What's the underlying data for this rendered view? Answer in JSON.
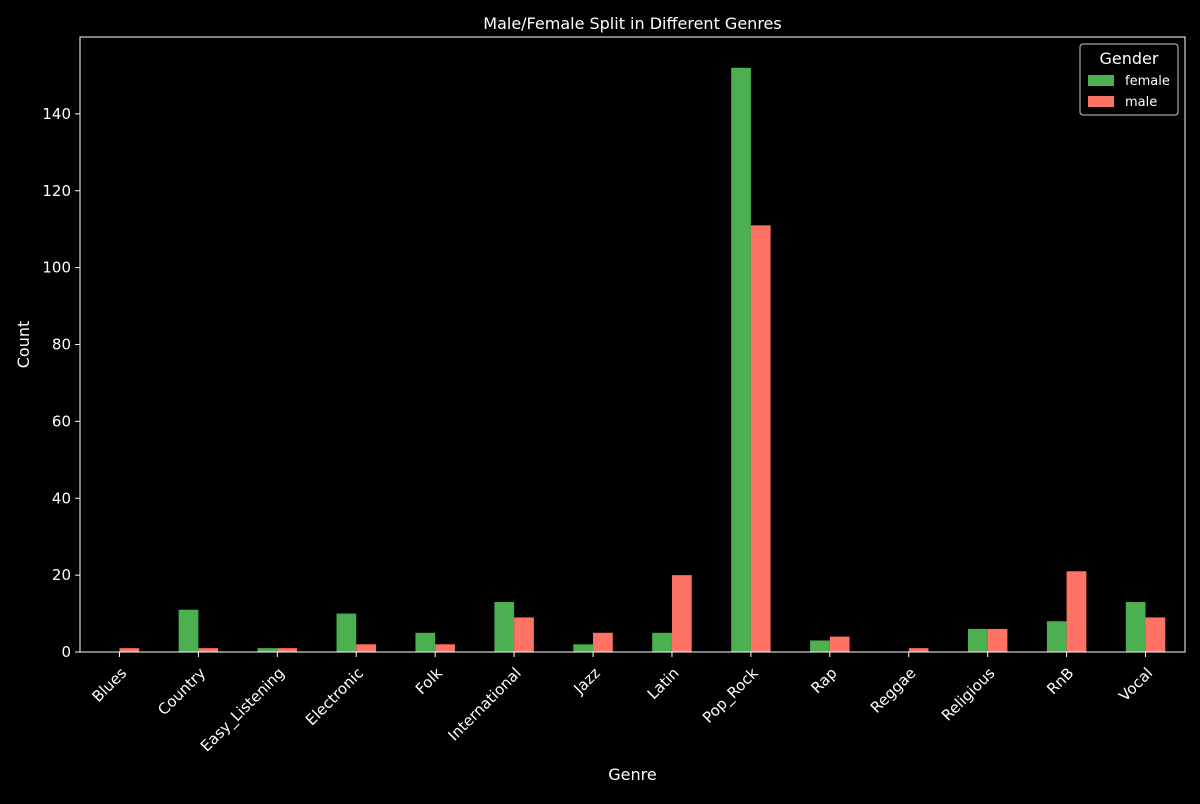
{
  "chart_data": {
    "type": "bar",
    "title": "Male/Female Split in Different Genres",
    "xlabel": "Genre",
    "ylabel": "Count",
    "ylim": [
      0,
      160
    ],
    "yticks": [
      0,
      20,
      40,
      60,
      80,
      100,
      120,
      140
    ],
    "grid": false,
    "legend": {
      "title": "Gender",
      "position": "top-right"
    },
    "categories": [
      "Blues",
      "Country",
      "Easy_Listening",
      "Electronic",
      "Folk",
      "International",
      "Jazz",
      "Latin",
      "Pop_Rock",
      "Rap",
      "Reggae",
      "Religious",
      "RnB",
      "Vocal"
    ],
    "series": [
      {
        "name": "female",
        "color": "#4CAF50",
        "values": [
          0,
          11,
          1,
          10,
          5,
          13,
          2,
          5,
          152,
          3,
          0,
          6,
          8,
          13
        ]
      },
      {
        "name": "male",
        "color": "#FF7366",
        "values": [
          1,
          1,
          1,
          2,
          2,
          9,
          5,
          20,
          111,
          4,
          1,
          6,
          21,
          9
        ]
      }
    ]
  }
}
